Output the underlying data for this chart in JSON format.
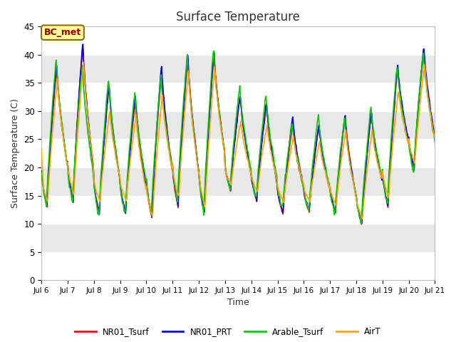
{
  "title": "Surface Temperature",
  "xlabel": "Time",
  "ylabel": "Surface Temperature (C)",
  "ylim": [
    0,
    45
  ],
  "annotation": "BC_met",
  "annotation_color": "#8B0000",
  "annotation_bg": "#FFFF99",
  "annotation_border": "#8B6914",
  "fig_bg": "#FFFFFF",
  "plot_bg": "#E8E8E8",
  "grid_color": "#FFFFFF",
  "series": {
    "NR01_Tsurf": {
      "color": "#FF0000",
      "lw": 1.2
    },
    "NR01_PRT": {
      "color": "#0000EE",
      "lw": 1.2
    },
    "Arable_Tsurf": {
      "color": "#00CC00",
      "lw": 1.2
    },
    "AirT": {
      "color": "#FFA500",
      "lw": 1.2
    }
  },
  "xtick_labels": [
    "Jul 6",
    "Jul 7",
    "Jul 8",
    "Jul 9",
    "Jul 10",
    "Jul 11",
    "Jul 12",
    "Jul 13",
    "Jul 14",
    "Jul 15",
    "Jul 16",
    "Jul 17",
    "Jul 18",
    "Jul 19",
    "Jul 20",
    "Jul 21"
  ],
  "ytick_vals": [
    0,
    5,
    10,
    15,
    20,
    25,
    30,
    35,
    40,
    45
  ],
  "legend_order": [
    "NR01_Tsurf",
    "NR01_PRT",
    "Arable_Tsurf",
    "AirT"
  ],
  "day_peaks_base": [
    38,
    42,
    35,
    32,
    37,
    40,
    41,
    33,
    32,
    28,
    28,
    29,
    30,
    38,
    41
  ],
  "day_mins_base": [
    13,
    14,
    12,
    12,
    11,
    13,
    12,
    16,
    14,
    12,
    12,
    12,
    10,
    13,
    20
  ]
}
